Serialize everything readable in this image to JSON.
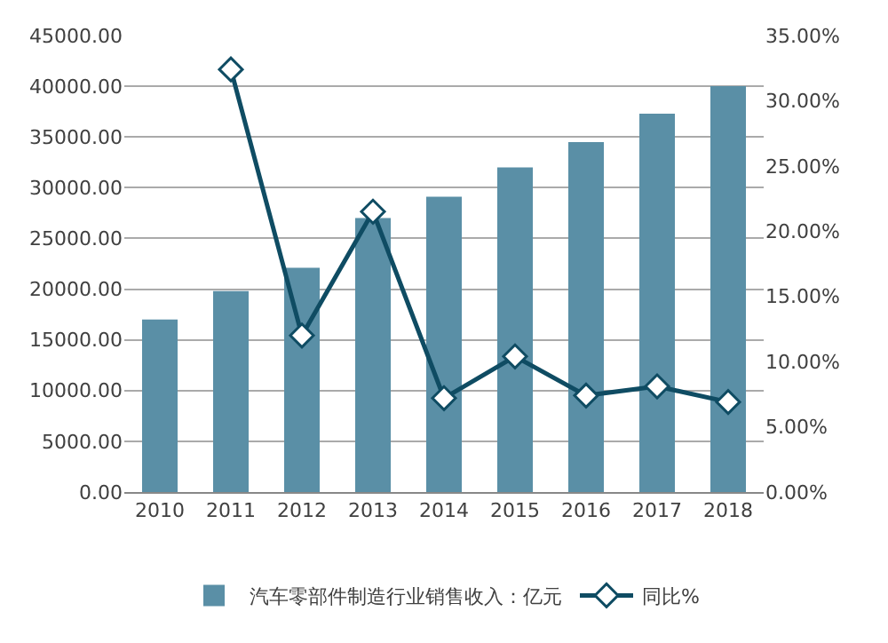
{
  "chart_data": {
    "type": "bar",
    "categories": [
      "2010",
      "2011",
      "2012",
      "2013",
      "2014",
      "2015",
      "2016",
      "2017",
      "2018"
    ],
    "series": [
      {
        "name": "汽车零部件制造行业销售收入：亿元",
        "color": "#5a8fa6",
        "values": [
          17000,
          19800,
          22100,
          27000,
          29100,
          32000,
          34500,
          37300,
          40000
        ]
      },
      {
        "name": "同比%",
        "type": "line",
        "axis": "y2",
        "color": "#0f4c63",
        "marker": "diamond",
        "values": [
          null,
          32.4,
          12,
          21.5,
          7.2,
          10.4,
          7.4,
          8.1,
          6.9
        ]
      }
    ],
    "ylim": [
      0,
      45000
    ],
    "yticks": [
      {
        "value": 0,
        "label": "0.00"
      },
      {
        "value": 5000,
        "label": "5000.00"
      },
      {
        "value": 10000,
        "label": "10000.00"
      },
      {
        "value": 15000,
        "label": "15000.00"
      },
      {
        "value": 20000,
        "label": "20000.00"
      },
      {
        "value": 25000,
        "label": "25000.00"
      },
      {
        "value": 30000,
        "label": "30000.00"
      },
      {
        "value": 35000,
        "label": "35000.00"
      },
      {
        "value": 40000,
        "label": "40000.00"
      },
      {
        "value": 45000,
        "label": "45000.00"
      }
    ],
    "y2lim": [
      0,
      35
    ],
    "y2ticks": [
      {
        "value": 0,
        "label": "0.00%"
      },
      {
        "value": 5,
        "label": "5.00%"
      },
      {
        "value": 10,
        "label": "10.00%"
      },
      {
        "value": 15,
        "label": "15.00%"
      },
      {
        "value": 20,
        "label": "20.00%"
      },
      {
        "value": 25,
        "label": "25.00%"
      },
      {
        "value": 30,
        "label": "30.00%"
      },
      {
        "value": 35,
        "label": "35.00%"
      }
    ],
    "grid": "y",
    "legend": "bottom"
  }
}
